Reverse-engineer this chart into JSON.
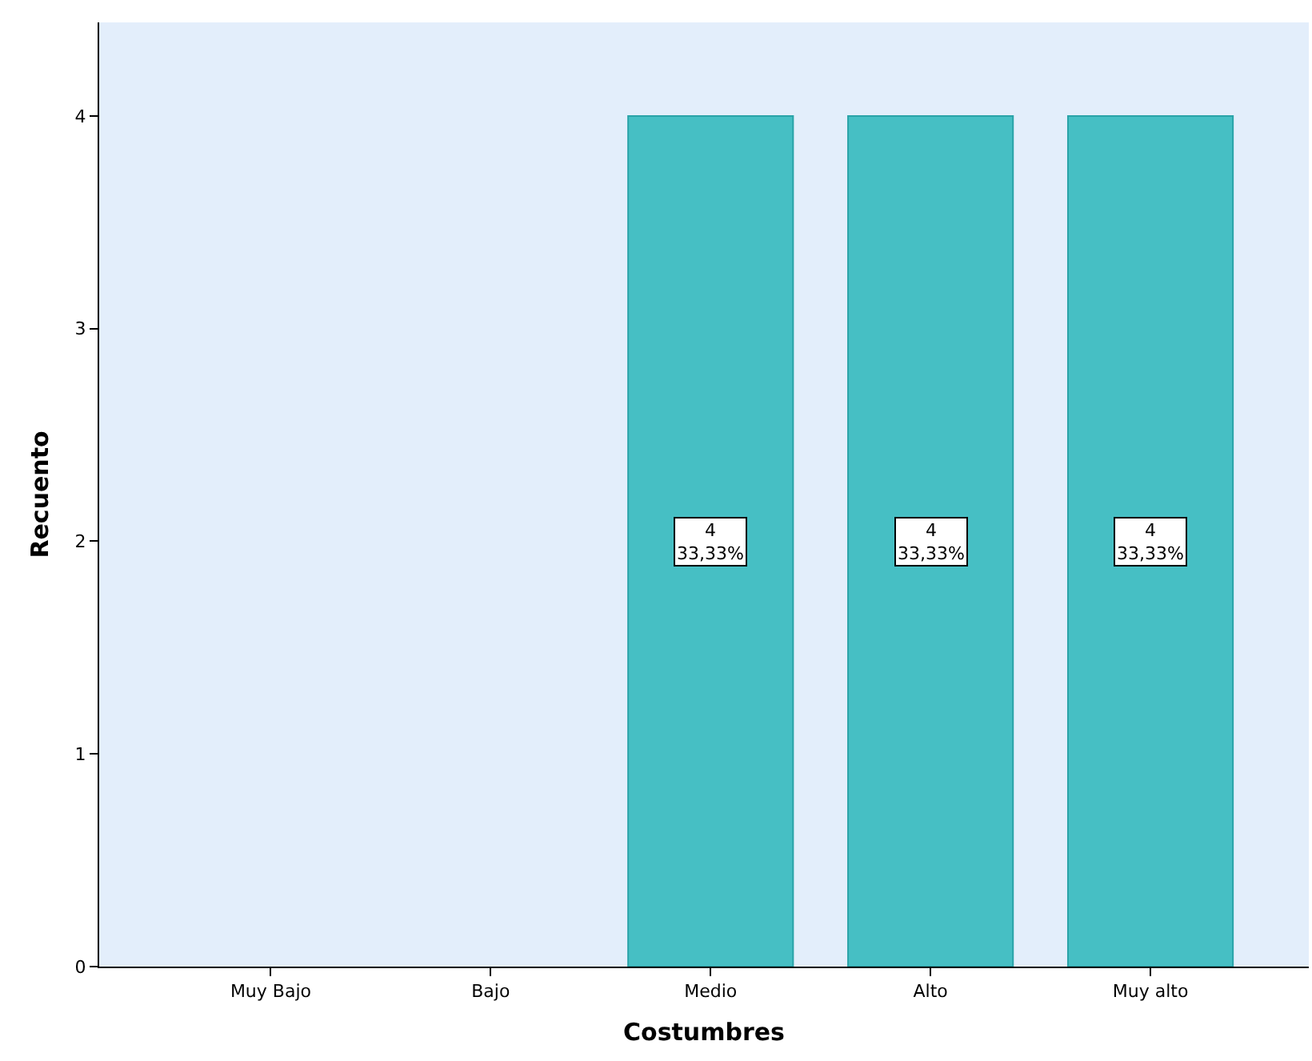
{
  "chart_data": {
    "type": "bar",
    "xlabel": "Costumbres",
    "ylabel": "Recuento",
    "categories": [
      "Muy Bajo",
      "Bajo",
      "Medio",
      "Alto",
      "Muy alto"
    ],
    "values": [
      0,
      0,
      4,
      4,
      4
    ],
    "value_labels": [
      null,
      null,
      "4\n33,33%",
      "4\n33,33%",
      "4\n33,33%"
    ],
    "color": "#46bfc4",
    "ylim": [
      0,
      4.44
    ],
    "yticks": [
      0,
      1,
      2,
      3,
      4
    ],
    "grid": false,
    "legend": false
  }
}
